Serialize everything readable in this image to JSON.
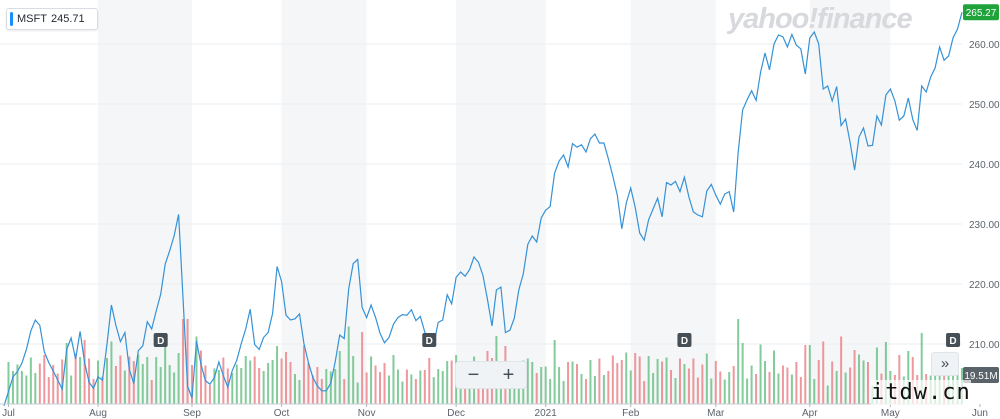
{
  "header": {
    "ticker": "MSFT",
    "last_value": "245.71"
  },
  "logo": "yahoo!finance",
  "zoom": {
    "minus": "−",
    "plus": "+"
  },
  "more_label": "»",
  "watermark": "itdw.cn",
  "colors": {
    "line": "#3592d6",
    "up": "#5ab97a",
    "down": "#e8757c",
    "band": "#f5f6f7",
    "grid": "#ebedf0",
    "price_tag": "#1fa33a",
    "volume_tag": "#5b636a"
  },
  "chart_data": {
    "type": "line",
    "title": "",
    "xlabel": "",
    "ylabel": "",
    "ylim": [
      200,
      267
    ],
    "yticks": [
      210,
      220,
      230,
      240,
      250,
      260
    ],
    "ytick_labels": [
      "210.00",
      "220.00",
      "230.00",
      "240.00",
      "250.00",
      "260.00"
    ],
    "xticks": [
      {
        "label": "Jul",
        "i": 1
      },
      {
        "label": "Aug",
        "i": 21
      },
      {
        "label": "Sep",
        "i": 42
      },
      {
        "label": "Oct",
        "i": 62
      },
      {
        "label": "Nov",
        "i": 81
      },
      {
        "label": "Dec",
        "i": 101
      },
      {
        "label": "2021",
        "i": 121
      },
      {
        "label": "Feb",
        "i": 140
      },
      {
        "label": "Mar",
        "i": 159
      },
      {
        "label": "Apr",
        "i": 180
      },
      {
        "label": "May",
        "i": 198
      },
      {
        "label": "Jun",
        "i": 218
      }
    ],
    "current_price_label": "265.27",
    "volume_label": "19.51M",
    "dividend_markers": [
      {
        "label": "D",
        "i": 35
      },
      {
        "label": "D",
        "i": 95
      },
      {
        "label": "D",
        "i": 152
      },
      {
        "label": "D",
        "i": 212
      }
    ],
    "series": [
      {
        "values": [
          199.7,
          202.1,
          204.5,
          205.4,
          206.8,
          209.1,
          212.2,
          214.0,
          213.1,
          208.7,
          206.9,
          205.5,
          204.0,
          202.5,
          209.1,
          211.0,
          207.5,
          212.1,
          206.9,
          203.6,
          202.6,
          204.5,
          204.0,
          210.0,
          216.5,
          213.1,
          210.4,
          211.9,
          205.8,
          203.4,
          208.9,
          209.7,
          213.7,
          212.5,
          215.5,
          218.3,
          223.3,
          225.5,
          228.0,
          231.6,
          217.4,
          203.0,
          201.0,
          210.5,
          206.6,
          203.9,
          203.3,
          204.4,
          207.0,
          204.7,
          202.8,
          205.6,
          207.3,
          210.1,
          212.5,
          215.8,
          209.9,
          209.1,
          211.1,
          211.9,
          215.1,
          222.9,
          220.4,
          214.8,
          214.0,
          214.2,
          215.0,
          210.1,
          206.9,
          204.4,
          203.0,
          202.2,
          202.2,
          203.5,
          207.1,
          211.5,
          210.9,
          219.2,
          223.4,
          224.1,
          216.1,
          214.4,
          216.5,
          214.4,
          211.8,
          210.2,
          211.1,
          213.3,
          214.4,
          214.9,
          214.8,
          215.7,
          213.9,
          214.6,
          212.0,
          209.8,
          210.0,
          213.6,
          214.0,
          218.2,
          216.7,
          221.1,
          222.0,
          221.3,
          222.4,
          224.5,
          223.6,
          221.4,
          217.4,
          213.0,
          219.0,
          219.5,
          211.9,
          212.3,
          214.3,
          219.0,
          221.7,
          226.6,
          228.0,
          227.0,
          231.0,
          232.3,
          232.9,
          238.5,
          240.5,
          241.5,
          239.5,
          243.4,
          242.8,
          243.2,
          242.0,
          244.2,
          245.0,
          243.5,
          243.5,
          240.9,
          238.0,
          234.8,
          229.2,
          233.5,
          236.0,
          232.8,
          228.5,
          227.3,
          230.7,
          232.5,
          234.3,
          231.2,
          236.9,
          236.5,
          237.1,
          235.4,
          237.8,
          234.5,
          232.0,
          231.5,
          231.2,
          235.5,
          236.6,
          234.8,
          233.3,
          235.0,
          235.4,
          232.0,
          242.0,
          249.0,
          250.7,
          252.2,
          250.6,
          255.3,
          258.5,
          255.7,
          260.0,
          261.5,
          261.2,
          259.5,
          261.6,
          259.8,
          259.2,
          255.0,
          261.0,
          262.0,
          260.0,
          252.5,
          253.0,
          250.5,
          252.9,
          246.4,
          247.5,
          243.6,
          239.0,
          244.5,
          246.0,
          243.0,
          243.1,
          248.0,
          246.5,
          251.5,
          252.5,
          250.5,
          247.3,
          248.0,
          251.0,
          247.4,
          245.6,
          253.0,
          252.0,
          254.5,
          256.0,
          259.5,
          257.3,
          258.0,
          261.0,
          262.5,
          265.3
        ]
      }
    ]
  }
}
